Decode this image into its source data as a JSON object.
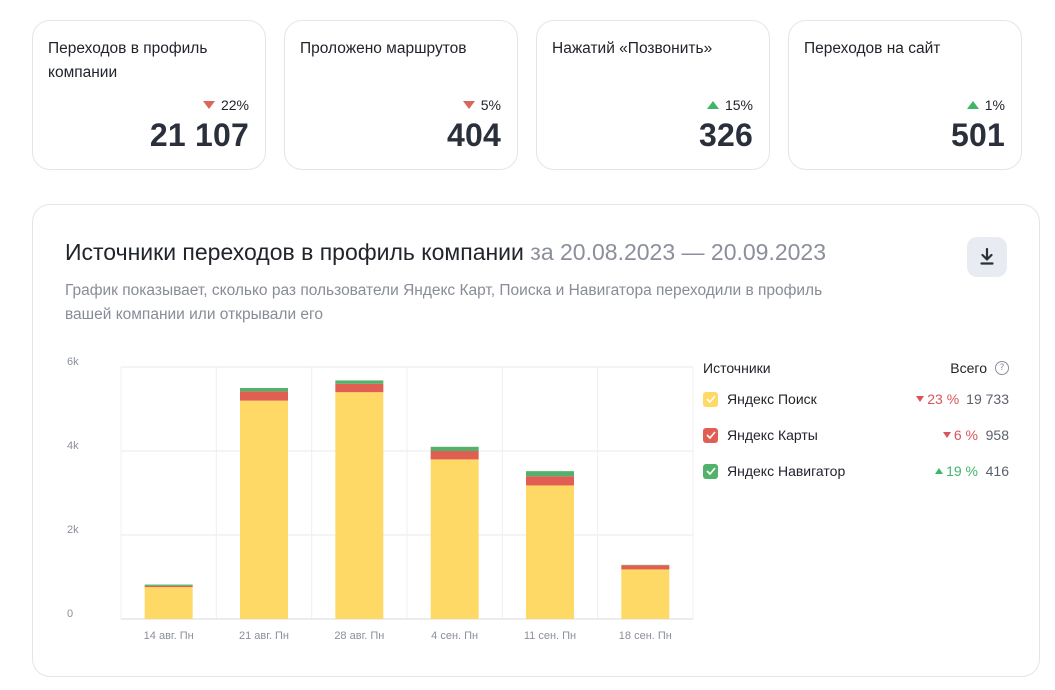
{
  "kpis": [
    {
      "title": "Переходов в профиль компании",
      "change": "22%",
      "direction": "down",
      "value": "21 107"
    },
    {
      "title": "Проложено маршрутов",
      "change": "5%",
      "direction": "down",
      "value": "404"
    },
    {
      "title": "Нажатий «Позвонить»",
      "change": "15%",
      "direction": "up",
      "value": "326"
    },
    {
      "title": "Переходов на сайт",
      "change": "1%",
      "direction": "up",
      "value": "501"
    }
  ],
  "panel": {
    "title": "Источники переходов в профиль компании",
    "period": "за 20.08.2023 — 20.09.2023",
    "description": "График показывает, сколько раз пользователи Яндекс Карт, Поиска и Навигатора переходили в профиль вашей компании или открывали его",
    "download_icon": "download-icon"
  },
  "legend": {
    "heading": "Источники",
    "total_label": "Всего",
    "help_icon": "?",
    "items": [
      {
        "name": "Яндекс Поиск",
        "change": "23 %",
        "direction": "down",
        "total": "19 733",
        "color": "#ffd966"
      },
      {
        "name": "Яндекс Карты",
        "change": "6 %",
        "direction": "down",
        "total": "958",
        "color": "#e05e52"
      },
      {
        "name": "Яндекс Навигатор",
        "change": "19 %",
        "direction": "up",
        "total": "416",
        "color": "#52b26b"
      }
    ]
  },
  "chart_data": {
    "type": "bar",
    "stacked": true,
    "categories": [
      "14 авг. Пн",
      "21 авг. Пн",
      "28 авг. Пн",
      "4 сен. Пн",
      "11 сен. Пн",
      "18 сен. Пн"
    ],
    "series": [
      {
        "name": "Яндекс Поиск",
        "color": "#ffd966",
        "values": [
          760,
          5200,
          5400,
          3800,
          3180,
          1180
        ]
      },
      {
        "name": "Яндекс Карты",
        "color": "#e05e52",
        "values": [
          30,
          220,
          200,
          200,
          220,
          100
        ]
      },
      {
        "name": "Яндекс Навигатор",
        "color": "#52b26b",
        "values": [
          30,
          80,
          80,
          100,
          120,
          10
        ]
      }
    ],
    "y_ticks": [
      {
        "value": 0,
        "label": "0"
      },
      {
        "value": 2000,
        "label": "2k"
      },
      {
        "value": 4000,
        "label": "4k"
      },
      {
        "value": 6000,
        "label": "6k"
      }
    ],
    "ylim": [
      0,
      6000
    ],
    "grid": true
  }
}
